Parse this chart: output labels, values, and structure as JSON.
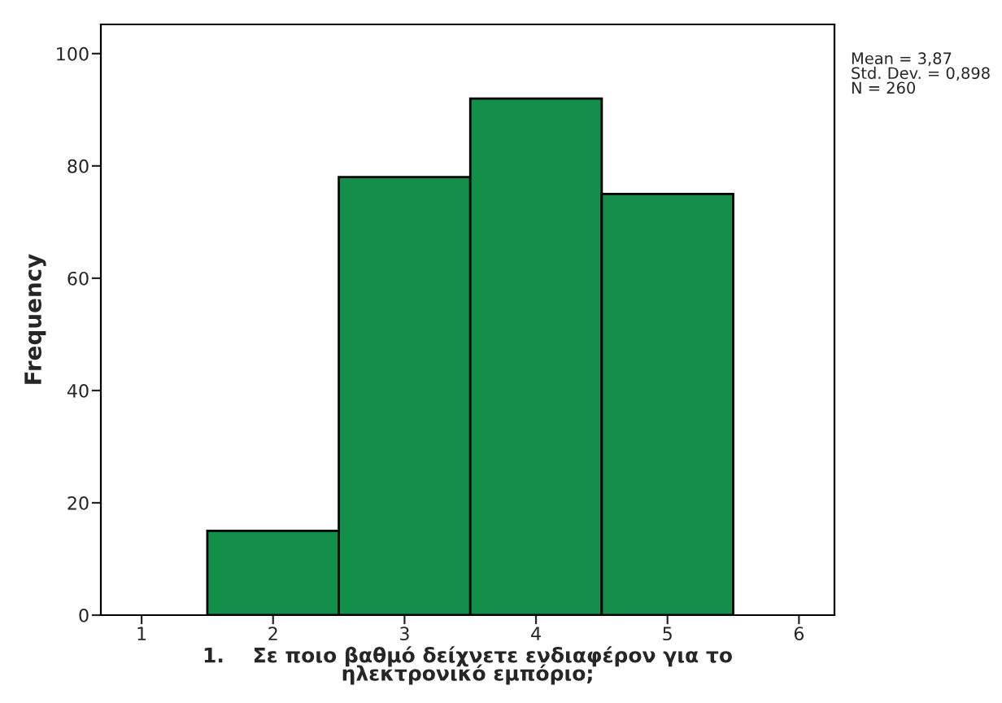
{
  "chart_data": {
    "type": "histogram",
    "xlabel": "1.    Σε ποιο βαθμό δείχνετε ενδιαφέρον για το\nηλεκτρονικό εμπόριο;",
    "ylabel": "Frequency",
    "bins": [
      1.5,
      2.5,
      3.5,
      4.5,
      5.5
    ],
    "values": [
      15,
      78,
      92,
      75
    ],
    "color": "#138f4a",
    "xlim": [
      0.69,
      6.27
    ],
    "xticks": [
      1,
      2,
      3,
      4,
      5,
      6
    ],
    "ylim": [
      0,
      105.2
    ],
    "yticks": [
      0,
      20,
      40,
      60,
      80,
      100
    ],
    "grid": false,
    "legend": false,
    "annotations": [
      "Mean = 3,87\nStd. Dev. = 0,898\nN = 260"
    ]
  }
}
